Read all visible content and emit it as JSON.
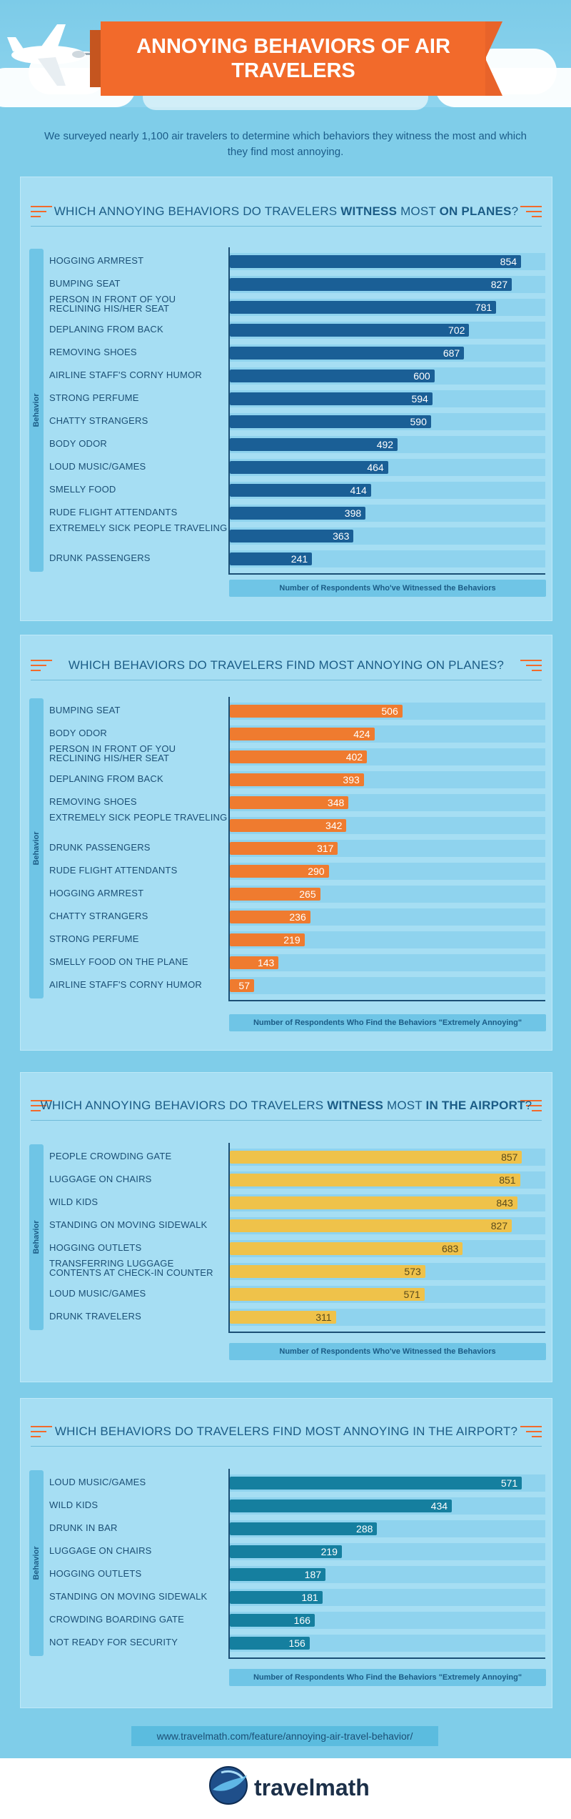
{
  "header": {
    "title": "ANNOYING BEHAVIORS OF AIR TRAVELERS",
    "intro": "We surveyed nearly 1,100 air travelers to determine which behaviors they witness the most and which they find most annoying."
  },
  "colors": {
    "background": "#7fcde9",
    "banner": "#f26a2b",
    "chart1": "#1a5f96",
    "chart2": "#ef7b2f",
    "chart3": "#efc24a",
    "chart4": "#157f9f"
  },
  "chart_data": [
    {
      "type": "bar",
      "orientation": "horizontal",
      "title_parts": [
        "WHICH ANNOYING BEHAVIORS DO TRAVELERS ",
        "WITNESS",
        " MOST ",
        "ON PLANES",
        "?"
      ],
      "ylabel": "Behavior",
      "xlabel": "Number of Respondents Who've Witnessed the Behaviors",
      "xlim": [
        0,
        900
      ],
      "color": "#1a5f96",
      "categories": [
        "HOGGING ARMREST",
        "BUMPING SEAT",
        "PERSON IN FRONT OF YOU RECLINING HIS/HER SEAT",
        "DEPLANING FROM BACK",
        "REMOVING SHOES",
        "AIRLINE STAFF'S CORNY HUMOR",
        "STRONG PERFUME",
        "CHATTY STRANGERS",
        "BODY ODOR",
        "LOUD MUSIC/GAMES",
        "SMELLY FOOD",
        "RUDE FLIGHT ATTENDANTS",
        "EXTREMELY SICK PEOPLE TRAVELING",
        "DRUNK PASSENGERS"
      ],
      "values": [
        854,
        827,
        781,
        702,
        687,
        600,
        594,
        590,
        492,
        464,
        414,
        398,
        363,
        241
      ]
    },
    {
      "type": "bar",
      "orientation": "horizontal",
      "title_parts": [
        "WHICH BEHAVIORS DO TRAVELERS FIND MOST ANNOYING ON PLANES?"
      ],
      "ylabel": "Behavior",
      "xlabel": "Number of Respondents Who Find the Behaviors \"Extremely Annoying\"",
      "xlim": [
        0,
        900
      ],
      "color": "#ef7b2f",
      "categories": [
        "BUMPING SEAT",
        "BODY ODOR",
        "PERSON IN FRONT OF YOU RECLINING HIS/HER SEAT",
        "DEPLANING FROM BACK",
        "REMOVING SHOES",
        "EXTREMELY SICK PEOPLE TRAVELING",
        "DRUNK PASSENGERS",
        "RUDE FLIGHT ATTENDANTS",
        "HOGGING ARMREST",
        "CHATTY STRANGERS",
        "STRONG PERFUME",
        "SMELLY FOOD ON THE PLANE",
        "AIRLINE STAFF'S CORNY HUMOR"
      ],
      "values": [
        506,
        424,
        402,
        393,
        348,
        342,
        317,
        290,
        265,
        236,
        219,
        143,
        57
      ]
    },
    {
      "type": "bar",
      "orientation": "horizontal",
      "title_parts": [
        "WHICH ANNOYING BEHAVIORS DO TRAVELERS ",
        "WITNESS",
        " MOST ",
        "IN THE AIRPORT",
        "?"
      ],
      "ylabel": "Behavior",
      "xlabel": "Number of Respondents Who've Witnessed the Behaviors",
      "xlim": [
        0,
        900
      ],
      "color": "#efc24a",
      "categories": [
        "PEOPLE CROWDING GATE",
        "LUGGAGE ON CHAIRS",
        "WILD KIDS",
        "STANDING ON MOVING SIDEWALK",
        "HOGGING OUTLETS",
        "TRANSFERRING LUGGAGE CONTENTS AT CHECK-IN COUNTER",
        "LOUD MUSIC/GAMES",
        "DRUNK TRAVELERS"
      ],
      "values": [
        857,
        851,
        843,
        827,
        683,
        573,
        571,
        311
      ]
    },
    {
      "type": "bar",
      "orientation": "horizontal",
      "title_parts": [
        "WHICH BEHAVIORS DO TRAVELERS FIND MOST ANNOYING IN THE AIRPORT?"
      ],
      "ylabel": "Behavior",
      "xlabel": "Number of Respondents Who Find the Behaviors \"Extremely Annoying\"",
      "xlim": [
        0,
        600
      ],
      "color": "#157f9f",
      "categories": [
        "LOUD MUSIC/GAMES",
        "WILD KIDS",
        "DRUNK IN BAR",
        "LUGGAGE ON CHAIRS",
        "HOGGING OUTLETS",
        "STANDING ON MOVING SIDEWALK",
        "CROWDING BOARDING GATE",
        "NOT READY FOR SECURITY"
      ],
      "values": [
        571,
        434,
        288,
        219,
        187,
        181,
        166,
        156
      ]
    }
  ],
  "footer": {
    "url": "www.travelmath.com/feature/annoying-air-travel-behavior/",
    "brand_a": "travel",
    "brand_b": "math"
  }
}
